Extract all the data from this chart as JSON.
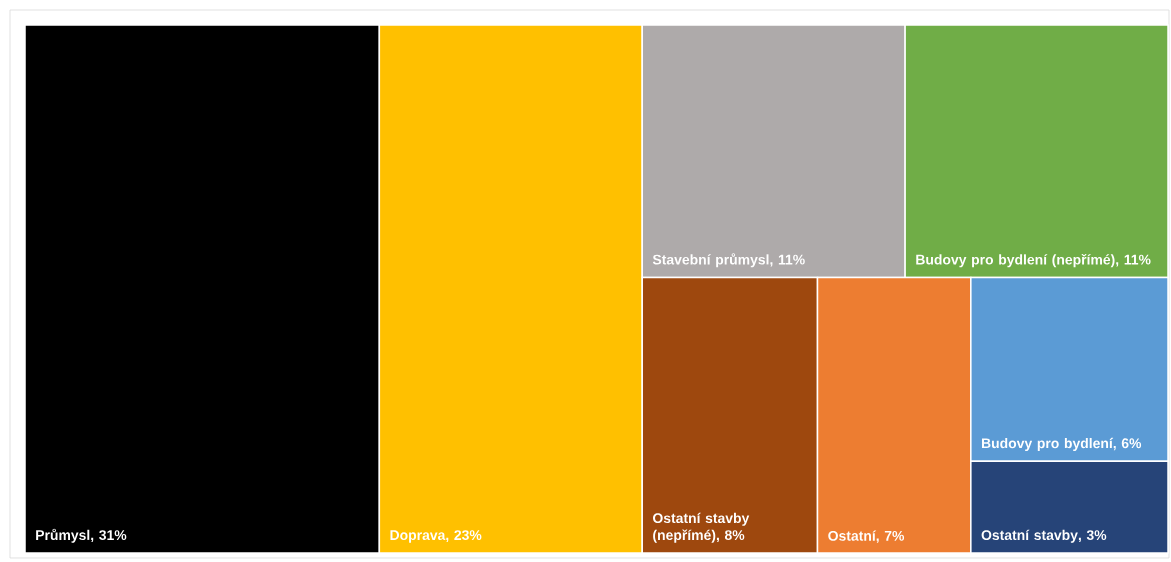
{
  "chart_data": {
    "type": "other",
    "categories": [
      "Průmysl",
      "Doprava",
      "Stavební průmysl",
      "Budovy pro bydlení (nepřímé)",
      "Ostatní stavby (nepřímé)",
      "Ostatní",
      "Budovy pro bydlení",
      "Ostatní stavby"
    ],
    "values": [
      31,
      23,
      11,
      11,
      8,
      7,
      6,
      3
    ],
    "value_labels": [
      ", 31%",
      ", 23%",
      ", 11%",
      ", 11%",
      ", 8%",
      ", 7%",
      ", 6%",
      ", 3%"
    ],
    "colors": [
      "#000000",
      "#ffc000",
      "#aeaaaa",
      "#70ad47",
      "#9e480e",
      "#ed7d31",
      "#5b9bd5",
      "#264478"
    ]
  }
}
